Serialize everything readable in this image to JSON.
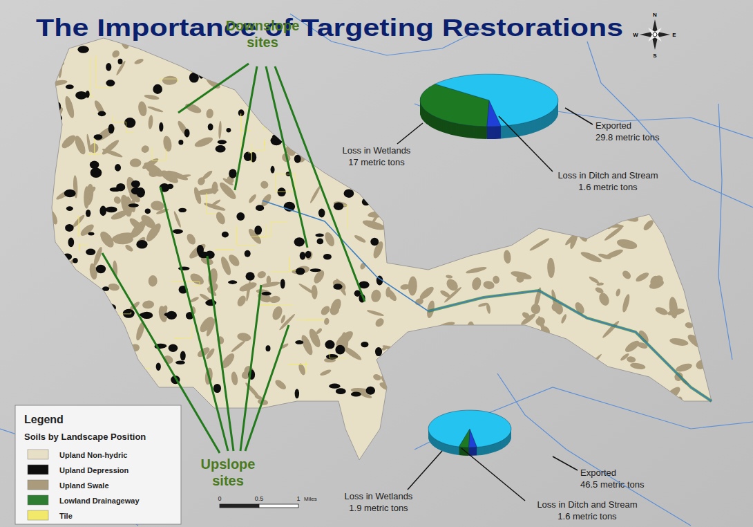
{
  "title": "The Importance of Targeting Restorations",
  "compass": [
    "N",
    "E",
    "S",
    "W"
  ],
  "annotations": [
    "Downslope sites",
    "Upslope sites"
  ],
  "chart_data": [
    {
      "type": "pie",
      "categories": [
        "Loss in Ditch and Stream",
        "Loss in Wetlands",
        "Exported"
      ],
      "values": [
        1.6,
        17,
        29.8
      ],
      "value_labels": [
        "1.6 metric tons",
        "17 metric tons",
        "29.8 metric tons"
      ],
      "colors": [
        "#1f3fd6",
        "#1e7a22",
        "#25c3f0"
      ],
      "data_labels": true
    },
    {
      "type": "pie",
      "categories": [
        "Loss in Ditch and Stream",
        "Loss in Wetlands",
        "Exported"
      ],
      "values": [
        1.6,
        1.9,
        46.5
      ],
      "value_labels": [
        "1.6 metric tons",
        "1.9 metric tons",
        "46.5 metric tons"
      ],
      "colors": [
        "#1f3fd6",
        "#1e7a22",
        "#25c3f0"
      ],
      "data_labels": true
    }
  ],
  "legend": {
    "title": "Legend",
    "subtitle": "Soils by Landscape Position",
    "items": [
      {
        "label": "Upland Non-hydric",
        "color": "#e8e0c6"
      },
      {
        "label": "Upland Depression",
        "color": "#0d0d0d"
      },
      {
        "label": "Upland Swale",
        "color": "#a99b7c"
      },
      {
        "label": "Lowland Drainageway",
        "color": "#2e7d32"
      },
      {
        "label": "Tile",
        "color": "#f2e96a"
      }
    ]
  },
  "scale_bar": {
    "ticks": [
      0,
      0.5,
      1
    ],
    "unit": "Miles"
  }
}
